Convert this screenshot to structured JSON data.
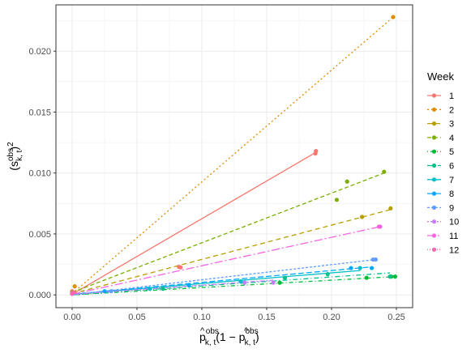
{
  "chart_data": {
    "type": "scatter",
    "title": "",
    "x_axis": {
      "range": [
        -0.0125,
        0.2625
      ],
      "ticks": [
        0,
        0.05,
        0.1,
        0.15,
        0.2,
        0.25
      ],
      "tick_labels": [
        "0.00",
        "0.05",
        "0.10",
        "0.15",
        "0.20",
        "0.25"
      ],
      "title": {
        "p_main": "p",
        "hat": "^",
        "sup": "obs",
        "sub": "k, t",
        "paren_open": "(1 − ",
        "paren_close": ")"
      }
    },
    "y_axis": {
      "range": [
        -0.00105,
        0.0238
      ],
      "ticks": [
        0,
        0.005,
        0.01,
        0.015,
        0.02
      ],
      "tick_labels": [
        "0.000",
        "0.005",
        "0.010",
        "0.015",
        "0.020"
      ],
      "title": {
        "open": "(s",
        "sup": "obs",
        "sub": "k, t",
        "close": ")",
        "power": "2"
      }
    },
    "grid": true,
    "legend": {
      "title": "Week",
      "placement": "right"
    },
    "series": [
      {
        "name": "1",
        "color": "#F8766D",
        "dash": "solid",
        "points": [
          [
            0,
            0.0003
          ],
          [
            0.0823,
            0.0023
          ],
          [
            0.0836,
            0.00225
          ],
          [
            0.1875,
            0.0116
          ],
          [
            0.188,
            0.0118
          ]
        ],
        "fit": [
          [
            0,
            5e-05
          ],
          [
            0.188,
            0.0117
          ]
        ]
      },
      {
        "name": "2",
        "color": "#DE8C00",
        "dash": "2,3",
        "points": [
          [
            0,
            0.0002
          ],
          [
            0.002,
            0.0007
          ],
          [
            0.2475,
            0.0228
          ]
        ],
        "fit": [
          [
            0,
            0.0001
          ],
          [
            0.2475,
            0.0228
          ]
        ]
      },
      {
        "name": "3",
        "color": "#B79F00",
        "dash": "6,4",
        "points": [
          [
            0,
            0.0001
          ],
          [
            0.2235,
            0.0064
          ],
          [
            0.2455,
            0.0071
          ]
        ],
        "fit": [
          [
            0,
            0.0001
          ],
          [
            0.2455,
            0.007
          ]
        ]
      },
      {
        "name": "4",
        "color": "#7CAE00",
        "dash": "5,3",
        "points": [
          [
            0,
            0.0002
          ],
          [
            0.204,
            0.0078
          ],
          [
            0.212,
            0.0093
          ],
          [
            0.2405,
            0.0101
          ]
        ],
        "fit": [
          [
            0,
            0.0002
          ],
          [
            0.2405,
            0.01
          ]
        ]
      },
      {
        "name": "5",
        "color": "#00BA38",
        "dash": "1,3,5,3",
        "points": [
          [
            0,
            0.0001
          ],
          [
            0.16,
            0.001
          ],
          [
            0.227,
            0.0014
          ],
          [
            0.246,
            0.0015
          ],
          [
            0.249,
            0.0015
          ]
        ],
        "fit": [
          [
            0,
            0.0
          ],
          [
            0.249,
            0.0015
          ]
        ]
      },
      {
        "name": "6",
        "color": "#00C08B",
        "dash": "6,3,1,3",
        "points": [
          [
            0,
            0.0001
          ],
          [
            0.07,
            0.0005
          ],
          [
            0.164,
            0.0014
          ],
          [
            0.197,
            0.0017
          ],
          [
            0.245,
            0.0015
          ]
        ],
        "fit": [
          [
            0,
            0.0
          ],
          [
            0.245,
            0.0018
          ]
        ]
      },
      {
        "name": "7",
        "color": "#00BFC4",
        "dash": "solid",
        "points": [
          [
            0,
            0.0001
          ],
          [
            0.06,
            0.0005
          ],
          [
            0.13,
            0.0011
          ],
          [
            0.222,
            0.0022
          ]
        ],
        "fit": [
          [
            0,
            5e-05
          ],
          [
            0.222,
            0.002
          ]
        ]
      },
      {
        "name": "8",
        "color": "#00A9FF",
        "dash": "7,3",
        "points": [
          [
            0,
            0.0001
          ],
          [
            0.025,
            0.0003
          ],
          [
            0.09,
            0.0008
          ],
          [
            0.215,
            0.0022
          ],
          [
            0.231,
            0.0022
          ]
        ],
        "fit": [
          [
            0,
            5e-05
          ],
          [
            0.231,
            0.0023
          ]
        ]
      },
      {
        "name": "9",
        "color": "#619CFF",
        "dash": "3,2",
        "points": [
          [
            0,
            0.0001
          ],
          [
            0.03,
            0.0003
          ],
          [
            0.232,
            0.0029
          ],
          [
            0.234,
            0.0029
          ]
        ],
        "fit": [
          [
            0,
            0.0
          ],
          [
            0.234,
            0.0029
          ]
        ]
      },
      {
        "name": "10",
        "color": "#C77CFF",
        "dash": "2,2,6,2",
        "points": [
          [
            0,
            0.0001
          ],
          [
            0.133,
            0.001
          ],
          [
            0.155,
            0.001
          ]
        ],
        "fit": [
          [
            0,
            5e-05
          ],
          [
            0.155,
            0.0012
          ]
        ]
      },
      {
        "name": "11",
        "color": "#F564E3",
        "dash": "10,3,2,3",
        "points": [
          [
            0,
            0.0001
          ],
          [
            0.2365,
            0.0056
          ],
          [
            0.2375,
            0.0056
          ]
        ],
        "fit": [
          [
            0,
            5e-05
          ],
          [
            0.2375,
            0.0056
          ]
        ]
      },
      {
        "name": "12",
        "color": "#FF64B0",
        "dash": "1,2",
        "points": [
          [
            0,
            0.0001
          ],
          [
            0.001,
            0.0002
          ]
        ],
        "fit": [
          [
            0,
            0.0001
          ],
          [
            0.001,
            0.0002
          ]
        ]
      }
    ]
  }
}
